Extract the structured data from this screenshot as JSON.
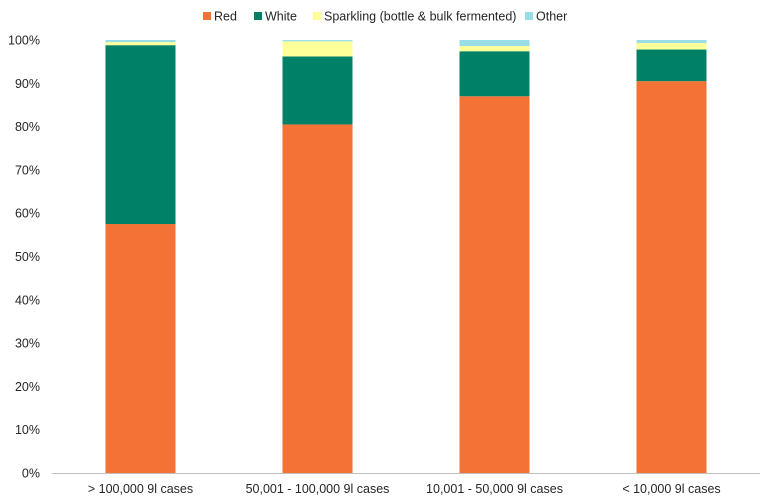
{
  "chart_data": {
    "type": "bar",
    "stacked": true,
    "categories": [
      "> 100,000 9l cases",
      "50,001 - 100,000 9l cases",
      "10,001 - 50,000 9l cases",
      "< 10,000 9l cases"
    ],
    "series": [
      {
        "name": "Red",
        "color": "#F47236",
        "values": [
          57.5,
          80.5,
          87.0,
          90.5
        ]
      },
      {
        "name": "White",
        "color": "#008066",
        "values": [
          41.3,
          15.7,
          10.4,
          7.3
        ]
      },
      {
        "name": "Sparkling (bottle & bulk fermented)",
        "color": "#FFFF99",
        "values": [
          0.7,
          3.5,
          1.2,
          1.5
        ]
      },
      {
        "name": "Other",
        "color": "#99DDE6",
        "values": [
          0.5,
          0.3,
          1.4,
          0.7
        ]
      }
    ],
    "y_ticks": [
      "0%",
      "10%",
      "20%",
      "30%",
      "40%",
      "50%",
      "60%",
      "70%",
      "80%",
      "90%",
      "100%"
    ],
    "ylim": [
      0,
      100
    ],
    "title": "",
    "xlabel": "",
    "ylabel": "",
    "legend_position": "top",
    "grid": false
  }
}
